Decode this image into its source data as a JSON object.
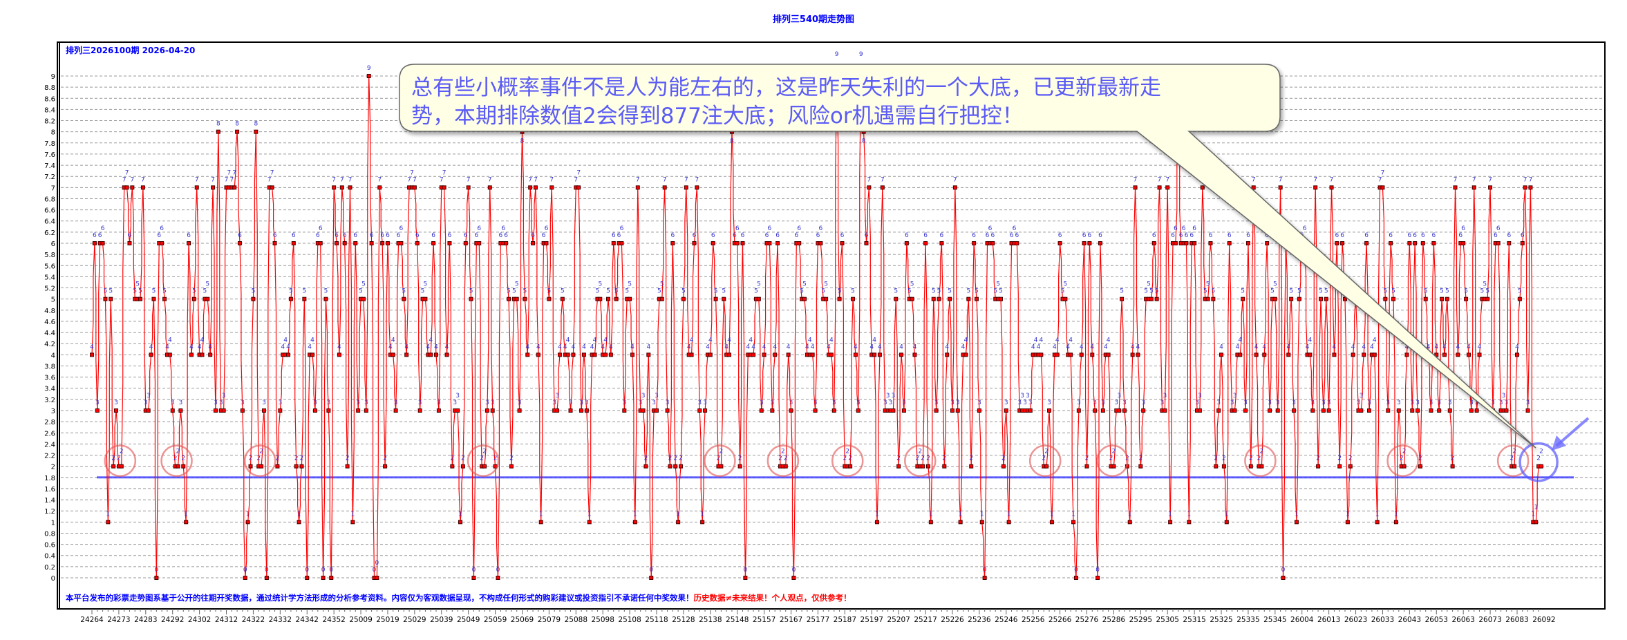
{
  "chart_data": {
    "type": "line",
    "title": "排列三540期走势图",
    "subtitle": "排列三2026100期  2026-04-20",
    "ylim": [
      0,
      9
    ],
    "ytick_step": 0.2,
    "grid": true,
    "reference_line": {
      "value": 1.8,
      "color": "#3a3aff"
    },
    "x_tick_labels": [
      "24264",
      "24273",
      "24283",
      "24292",
      "24302",
      "24312",
      "24322",
      "24332",
      "24342",
      "24352",
      "25009",
      "25019",
      "25029",
      "25039",
      "25049",
      "25059",
      "25069",
      "25079",
      "25088",
      "25098",
      "25108",
      "25118",
      "25128",
      "25138",
      "25148",
      "25157",
      "25167",
      "25177",
      "25187",
      "25197",
      "25207",
      "25217",
      "25226",
      "25236",
      "25246",
      "25256",
      "25266",
      "25276",
      "25286",
      "25295",
      "25305",
      "25315",
      "25325",
      "25335",
      "25345",
      "26004",
      "26013",
      "26023",
      "26033",
      "26043",
      "26053",
      "26063",
      "26073",
      "26083",
      "26092"
    ],
    "values": [
      4,
      6,
      3,
      6,
      6,
      5,
      1,
      5,
      2,
      3,
      2,
      2,
      7,
      7,
      6,
      7,
      5,
      5,
      5,
      7,
      3,
      3,
      4,
      5,
      0,
      6,
      6,
      5,
      4,
      4,
      3,
      2,
      2,
      3,
      2,
      1,
      6,
      4,
      5,
      7,
      4,
      4,
      5,
      5,
      4,
      7,
      3,
      8,
      3,
      3,
      7,
      7,
      7,
      7,
      8,
      6,
      3,
      0,
      1,
      2,
      5,
      8,
      2,
      2,
      3,
      0,
      7,
      7,
      6,
      2,
      3,
      4,
      4,
      4,
      5,
      6,
      2,
      1,
      2,
      5,
      0,
      4,
      4,
      3,
      6,
      6,
      0,
      5,
      3,
      0,
      7,
      6,
      4,
      7,
      6,
      2,
      7,
      1,
      6,
      3,
      5,
      5,
      3,
      9,
      6,
      0,
      0,
      7,
      6,
      2,
      6,
      4,
      4,
      3,
      6,
      6,
      5,
      4,
      7,
      7,
      7,
      6,
      3,
      5,
      5,
      4,
      4,
      6,
      4,
      3,
      7,
      7,
      4,
      6,
      2,
      3,
      3,
      1,
      2,
      6,
      7,
      5,
      0,
      6,
      6,
      2,
      2,
      3,
      7,
      3,
      2,
      0,
      6,
      6,
      6,
      5,
      2,
      5,
      5,
      3,
      8,
      5,
      4,
      7,
      6,
      7,
      4,
      1,
      6,
      6,
      5,
      7,
      3,
      3,
      4,
      5,
      4,
      4,
      3,
      4,
      7,
      7,
      3,
      4,
      3,
      1,
      4,
      4,
      5,
      5,
      4,
      4,
      5,
      4,
      6,
      5,
      6,
      6,
      3,
      5,
      5,
      4,
      1,
      7,
      3,
      3,
      2,
      4,
      0,
      3,
      3,
      5,
      5,
      7,
      3,
      2,
      6,
      2,
      1,
      2,
      5,
      7,
      4,
      4,
      6,
      7,
      3,
      1,
      3,
      4,
      4,
      6,
      5,
      2,
      2,
      5,
      4,
      4,
      8,
      6,
      6,
      2,
      6,
      0,
      4,
      4,
      4,
      5,
      5,
      3,
      4,
      6,
      6,
      3,
      4,
      6,
      2,
      2,
      2,
      4,
      3,
      0,
      6,
      6,
      5,
      5,
      4,
      4,
      4,
      3,
      6,
      6,
      5,
      5,
      4,
      4,
      3,
      9,
      5,
      6,
      2,
      2,
      2,
      5,
      4,
      3,
      9,
      8,
      6,
      7,
      4,
      4,
      1,
      4,
      7,
      3,
      3,
      3,
      3,
      5,
      2,
      4,
      3,
      6,
      5,
      5,
      4,
      2,
      2,
      2,
      6,
      2,
      1,
      5,
      3,
      5,
      6,
      2,
      4,
      5,
      3,
      7,
      3,
      1,
      4,
      4,
      5,
      2,
      6,
      5,
      3,
      1,
      0,
      6,
      6,
      6,
      5,
      5,
      5,
      2,
      3,
      1,
      6,
      6,
      6,
      3,
      3,
      3,
      3,
      3,
      4,
      4,
      4,
      4,
      2,
      2,
      3,
      1,
      4,
      4,
      6,
      5,
      5,
      4,
      4,
      1,
      0,
      3,
      4,
      6,
      2,
      6,
      4,
      3,
      0,
      6,
      3,
      4,
      4,
      2,
      2,
      3,
      3,
      5,
      3,
      2,
      1,
      4,
      7,
      4,
      2,
      3,
      5,
      5,
      5,
      6,
      5,
      7,
      3,
      3,
      7,
      1,
      6,
      6,
      8,
      6,
      6,
      6,
      1,
      6,
      6,
      3,
      3,
      7,
      5,
      5,
      6,
      5,
      2,
      3,
      4,
      2,
      1,
      6,
      3,
      3,
      4,
      4,
      5,
      3,
      6,
      2,
      7,
      4,
      2,
      2,
      4,
      6,
      3,
      5,
      5,
      3,
      7,
      0,
      6,
      4,
      5,
      3,
      1,
      5,
      6,
      6,
      4,
      4,
      3,
      7,
      2,
      5,
      3,
      5,
      3,
      7,
      4,
      6,
      2,
      6,
      5,
      1,
      2,
      4,
      5,
      3,
      3,
      4,
      6,
      3,
      4,
      4,
      1,
      7,
      7,
      5,
      3,
      6,
      5,
      1,
      3,
      2,
      2,
      4,
      6,
      3,
      6,
      3,
      2,
      6,
      5,
      4,
      3,
      6,
      4,
      3,
      5,
      4,
      5,
      3,
      2,
      7,
      4,
      6,
      6,
      5,
      4,
      3,
      7,
      3,
      4,
      5,
      5,
      5,
      7,
      3,
      6,
      6,
      3,
      3,
      3,
      6,
      2,
      2,
      4,
      5,
      6,
      7,
      3,
      7,
      1,
      1,
      2,
      2
    ]
  },
  "callout": {
    "line1": "总有些小概率事件不是人为能左右的，这是昨天失利的一个大底，已更新最新走",
    "line2": "势，本期排除数值2会得到877注大底；风险or机遇需自行把控！"
  },
  "disclaimer": {
    "blue": "本平台发布的彩票走势图系基于公开的往期开奖数据，通过统计学方法形成的分析参考资料。内容仅为客观数据呈现，不构成任何形式的购彩建议或投资指引不承诺任何中奖效果！",
    "red": "历史数据≠未来结果！个人观点，仅供参考！"
  },
  "colors": {
    "line": "#ff0000",
    "marker": "#cc0000",
    "label": "#3333cc",
    "title": "#0000ff",
    "highlight_circle": "#e05050",
    "current_circle": "#5555ff",
    "callout_bg": "#ffffe6"
  }
}
